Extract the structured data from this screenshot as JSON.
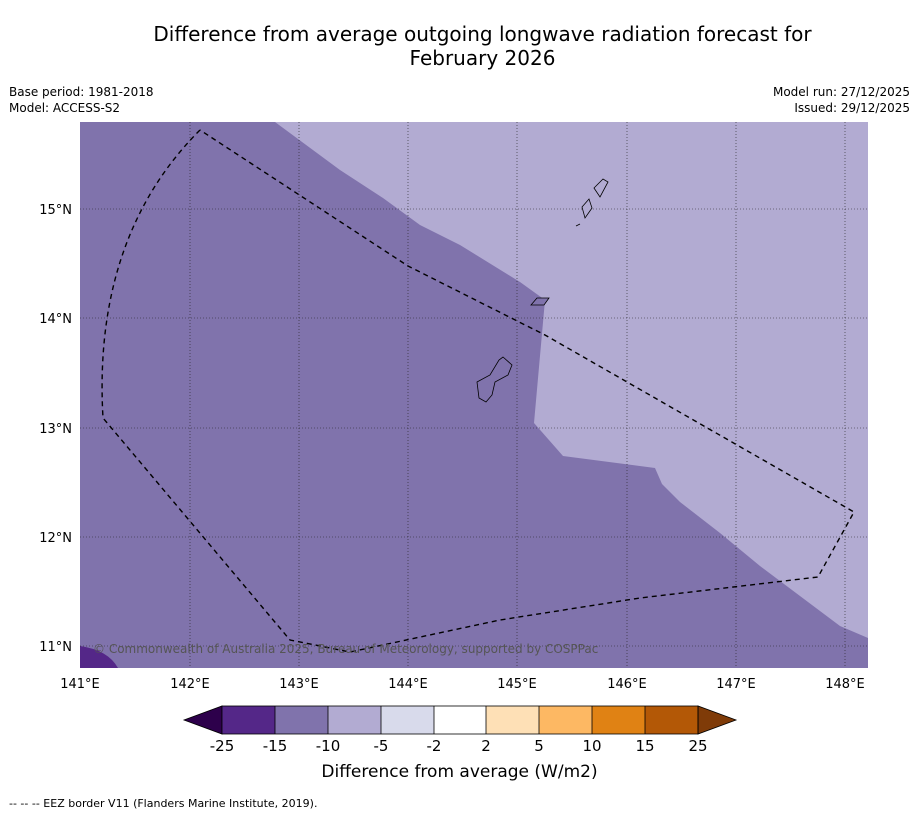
{
  "title_line1": "Difference from average outgoing longwave radiation forecast for",
  "title_line2": "February 2026",
  "meta_left": [
    "Base period: 1981-2018",
    "Model: ACCESS-S2"
  ],
  "meta_right": [
    "Model run: 27/12/2025",
    "Issued: 29/12/2025"
  ],
  "copyright": "© Commonwealth of Australia 2025, Bureau of Meteorology, supported by COSPPac",
  "axes": {
    "lon_labels": [
      "141°E",
      "142°E",
      "143°E",
      "144°E",
      "145°E",
      "146°E",
      "147°E",
      "148°E"
    ],
    "lat_labels": [
      "15°N",
      "14°N",
      "13°N",
      "12°N",
      "11°N"
    ]
  },
  "colorbar": {
    "title": "Difference from average (W/m2)",
    "labels": [
      "-25",
      "-15",
      "-10",
      "-5",
      "-2",
      "2",
      "5",
      "10",
      "15",
      "25"
    ],
    "colors": [
      "#2d004b",
      "#542788",
      "#8073ac",
      "#b2abd2",
      "#d8daeb",
      "#ffffff",
      "#fee0b6",
      "#fdb863",
      "#e08214",
      "#b35806",
      "#7f3b08"
    ]
  },
  "footer": "--  --  -- EEZ border V11 (Flanders Marine Institute, 2019)."
}
